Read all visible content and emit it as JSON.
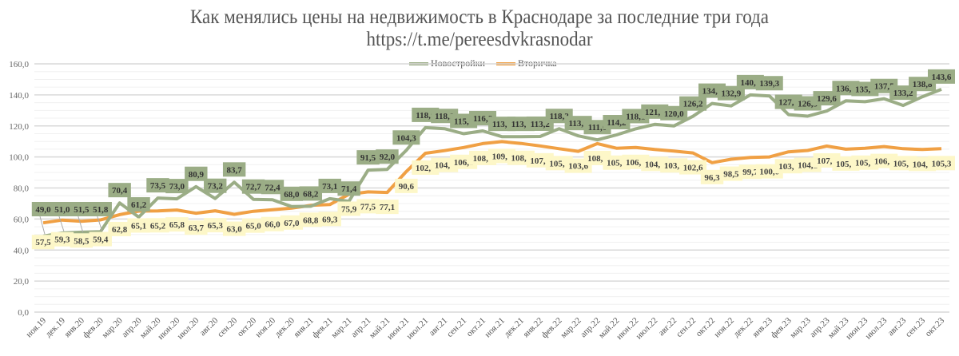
{
  "title": {
    "line1": "Как менялись цены на недвижимость в Краснодаре за последние  три года",
    "line2": "https://t.me/pereesdvkrasnodar"
  },
  "legend": [
    {
      "name": "Новостройки",
      "color": "#9bad86"
    },
    {
      "name": "Вторичка",
      "color": "#f0a044"
    }
  ],
  "chart_data": {
    "type": "line",
    "title": "Как менялись цены на недвижимость в Краснодаре за последние  три года https://t.me/pereesdvkrasnodar",
    "xlabel": "",
    "ylabel": "",
    "ylim": [
      0,
      160
    ],
    "yticks": [
      "0,0",
      "20,0",
      "40,0",
      "60,0",
      "80,0",
      "100,0",
      "120,0",
      "140,0",
      "160,0"
    ],
    "grid": true,
    "legend_position": "top",
    "categories": [
      "ноя.19",
      "дек.19",
      "янв.20",
      "фев.20",
      "мар.20",
      "апр.20",
      "май.20",
      "июн.20",
      "июл.20",
      "авг.20",
      "сен.20",
      "окт.20",
      "ноя.20",
      "дек.20",
      "янв.21",
      "фев.21",
      "мар.21",
      "апр.21",
      "май.21",
      "июн.21",
      "июл.21",
      "авг.21",
      "сен.21",
      "окт.21",
      "ноя.21",
      "дек.21",
      "янв.22",
      "фев.22",
      "мар.22",
      "апр.22",
      "май.22",
      "июн.22",
      "июл.22",
      "авг.22",
      "сен.22",
      "окт.22",
      "ноя.22",
      "дек.22",
      "янв.23",
      "фев.23",
      "мар.23",
      "апр.23",
      "май.23",
      "июн.23",
      "июл.23",
      "авг.23",
      "сен.23",
      "окт.23"
    ],
    "series": [
      {
        "name": "Новостройки",
        "color": "#9bad86",
        "label_bg": "#9bad86",
        "values": [
          49.0,
          51.0,
          51.5,
          51.8,
          70.4,
          61.2,
          73.5,
          73.0,
          80.9,
          73.2,
          83.7,
          72.7,
          72.4,
          68.0,
          68.2,
          73.1,
          71.4,
          91.5,
          92.0,
          104.3,
          118.9,
          118.2,
          115.0,
          116.8,
          113.1,
          113.1,
          113.2,
          118.2,
          113.6,
          111.0,
          114.2,
          118.1,
          121.0,
          120.0,
          126.2,
          134.5,
          132.9,
          140.0,
          139.3,
          127.3,
          126.3,
          129.6,
          136.2,
          135.6,
          137.5,
          133.2,
          138.8,
          143.6
        ]
      },
      {
        "name": "Вторичка",
        "color": "#f0a044",
        "label_bg": "#fdf7c8",
        "values": [
          57.5,
          59.3,
          58.5,
          59.4,
          62.8,
          65.1,
          65.2,
          65.8,
          63.7,
          65.3,
          63.0,
          65.0,
          66.0,
          67.0,
          68.8,
          69.3,
          75.9,
          77.5,
          77.1,
          90.6,
          102.4,
          104.1,
          106.1,
          108.6,
          109.9,
          108.7,
          107.1,
          105.3,
          103.6,
          108.6,
          105.6,
          106.1,
          104.8,
          103.8,
          102.6,
          96.3,
          98.5,
          99.7,
          100.0,
          103.3,
          104.2,
          107.0,
          105.0,
          105.6,
          106.7,
          105.3,
          104.8,
          105.3
        ]
      }
    ]
  }
}
